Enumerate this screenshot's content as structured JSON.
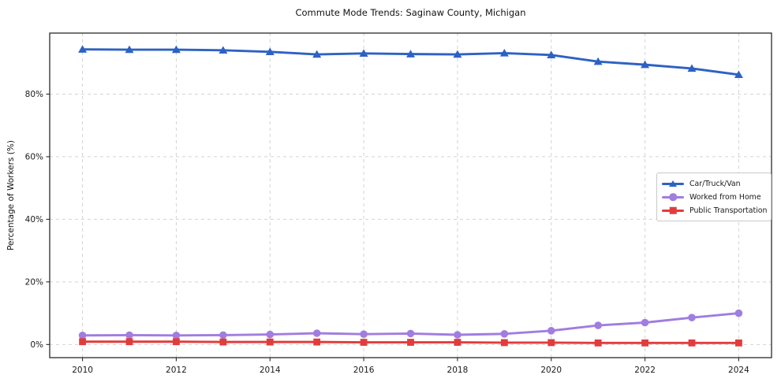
{
  "chart_data": {
    "type": "line",
    "title": "Commute Mode Trends: Saginaw County, Michigan",
    "xlabel": "",
    "ylabel": "Percentage of Workers (%)",
    "x": [
      2010,
      2011,
      2012,
      2013,
      2014,
      2015,
      2016,
      2017,
      2018,
      2019,
      2020,
      2021,
      2022,
      2023,
      2024
    ],
    "series": [
      {
        "name": "Car/Truck/Van",
        "color": "#2c62c4",
        "marker": "triangle",
        "values": [
          94.3,
          94.2,
          94.2,
          94.0,
          93.5,
          92.7,
          93.0,
          92.8,
          92.7,
          93.1,
          92.5,
          90.4,
          89.4,
          88.2,
          86.2
        ]
      },
      {
        "name": "Worked from Home",
        "color": "#a07de0",
        "marker": "circle",
        "values": [
          2.9,
          3.0,
          2.9,
          3.0,
          3.2,
          3.6,
          3.3,
          3.5,
          3.1,
          3.4,
          4.4,
          6.1,
          7.0,
          8.6,
          10.0
        ]
      },
      {
        "name": "Public Transportation",
        "color": "#e13c3c",
        "marker": "square",
        "values": [
          0.9,
          0.9,
          0.9,
          0.8,
          0.8,
          0.8,
          0.7,
          0.7,
          0.7,
          0.6,
          0.6,
          0.5,
          0.5,
          0.5,
          0.5
        ]
      }
    ],
    "xticks": [
      2010,
      2012,
      2014,
      2016,
      2018,
      2020,
      2022,
      2024
    ],
    "xtick_labels": [
      "2010",
      "2012",
      "2014",
      "2016",
      "2018",
      "2020",
      "2022",
      "2024"
    ],
    "yticks": {
      "values": [
        0,
        20,
        40,
        60,
        80
      ],
      "labels": [
        "0%",
        "20%",
        "40%",
        "60%",
        "80%"
      ]
    },
    "xlim": [
      2009.3,
      2024.7
    ],
    "ylim": [
      -4.2,
      99.5
    ],
    "grid": true,
    "grid_style": "dashed",
    "legend_position": "center-right",
    "background_color": "#ffffff",
    "grid_color": "#d3d3d3"
  }
}
